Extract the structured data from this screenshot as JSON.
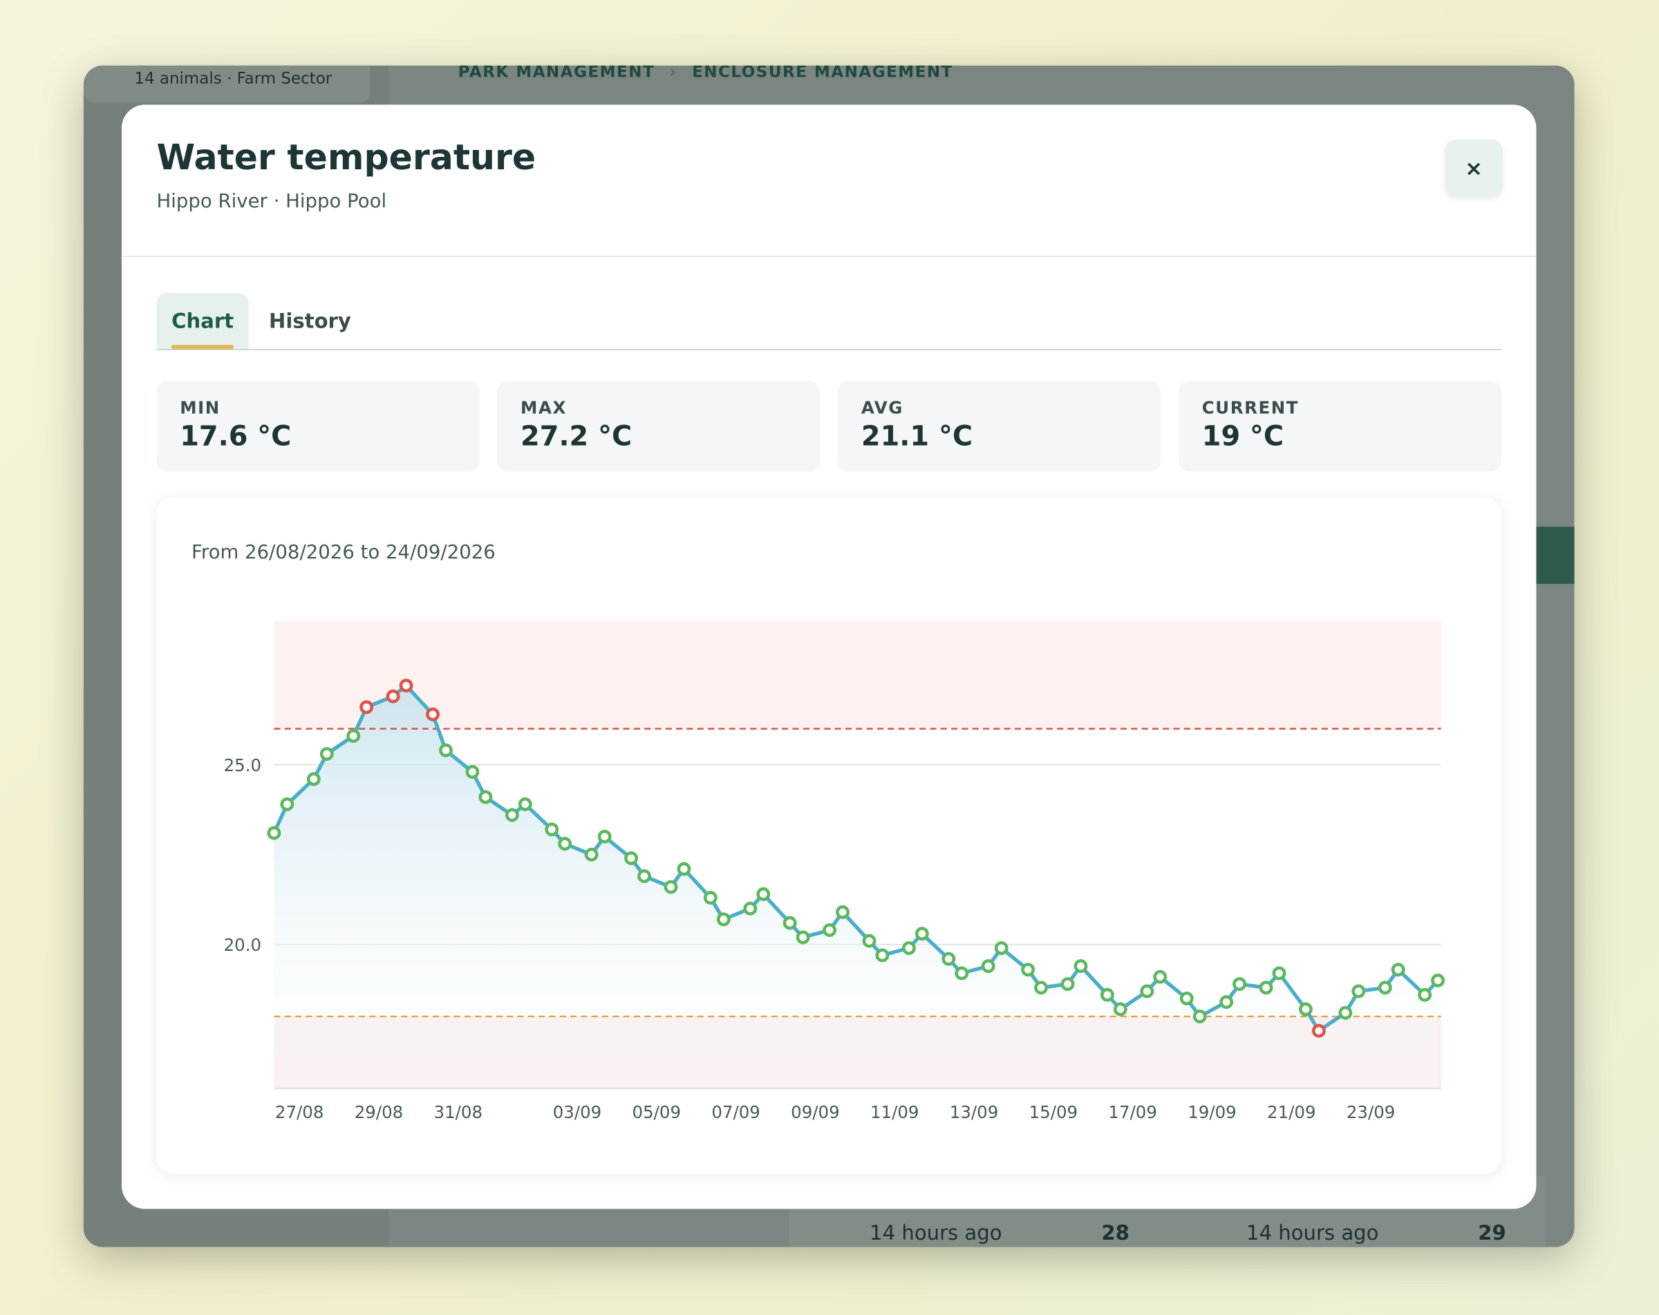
{
  "background": {
    "sector": "14 animals · Farm Sector",
    "breadcrumb": [
      "PARK MANAGEMENT",
      "ENCLOSURE MANAGEMENT"
    ],
    "cards": [
      {
        "time": "14 hours ago",
        "count": 28
      },
      {
        "time": "14 hours ago",
        "count": 29
      }
    ]
  },
  "modal": {
    "title": "Water temperature",
    "subtitle": "Hippo River · Hippo Pool",
    "close": "×",
    "tabs": [
      "Chart",
      "History"
    ],
    "active_tab": 0,
    "stats": [
      {
        "label": "MIN",
        "value": "17.6 °C"
      },
      {
        "label": "MAX",
        "value": "27.2 °C"
      },
      {
        "label": "AVG",
        "value": "21.1 °C"
      },
      {
        "label": "CURRENT",
        "value": "19 °C"
      }
    ]
  },
  "chart_data": {
    "type": "line",
    "subtitle": "From 26/08/2026 to 24/09/2026",
    "series": [
      {
        "color": "#4aaecb",
        "point_color": "#5cb85c",
        "alert_color": "#e0524a",
        "x": [
          0,
          0.33,
          1,
          1.33,
          2,
          2.33,
          3,
          3.33,
          4,
          4.33,
          5,
          5.33,
          6,
          6.33,
          7,
          7.33,
          8,
          8.33,
          9,
          9.33,
          10,
          10.33,
          11,
          11.33,
          12,
          12.33,
          13,
          13.33,
          14,
          14.33,
          15,
          15.33,
          16,
          16.33,
          17,
          17.33,
          18,
          18.33,
          19,
          19.33,
          20,
          20.33,
          21,
          21.33,
          22,
          22.33,
          23,
          23.33,
          24,
          24.33,
          25,
          25.33,
          26,
          26.33,
          27,
          27.33,
          28,
          28.33,
          29,
          29.33
        ],
        "values": [
          23.1,
          23.9,
          24.6,
          25.3,
          25.8,
          26.6,
          26.9,
          27.2,
          26.4,
          25.4,
          24.8,
          24.1,
          23.6,
          23.9,
          23.2,
          22.8,
          22.5,
          23.0,
          22.4,
          21.9,
          21.6,
          22.1,
          21.3,
          20.7,
          21.0,
          21.4,
          20.6,
          20.2,
          20.4,
          20.9,
          20.1,
          19.7,
          19.9,
          20.3,
          19.6,
          19.2,
          19.4,
          19.9,
          19.3,
          18.8,
          18.9,
          19.4,
          18.6,
          18.2,
          18.7,
          19.1,
          18.5,
          18.0,
          18.4,
          18.9,
          18.8,
          19.2,
          18.2,
          17.6,
          18.1,
          18.7,
          18.8,
          19.3,
          18.6,
          19.0
        ]
      }
    ],
    "thresholds": {
      "high": 26,
      "low": 18,
      "high_color": "#d9534f",
      "low_color": "#e8a33d"
    },
    "xlim": [
      0,
      29.41
    ],
    "xticks": [
      {
        "value": 0.64,
        "label": "27/08"
      },
      {
        "value": 2.64,
        "label": "29/08"
      },
      {
        "value": 4.64,
        "label": "31/08"
      },
      {
        "value": 7.64,
        "label": "03/09"
      },
      {
        "value": 9.64,
        "label": "05/09"
      },
      {
        "value": 11.64,
        "label": "07/09"
      },
      {
        "value": 13.64,
        "label": "09/09"
      },
      {
        "value": 15.64,
        "label": "11/09"
      },
      {
        "value": 17.64,
        "label": "13/09"
      },
      {
        "value": 19.64,
        "label": "15/09"
      },
      {
        "value": 21.64,
        "label": "17/09"
      },
      {
        "value": 23.64,
        "label": "19/09"
      },
      {
        "value": 25.64,
        "label": "21/09"
      },
      {
        "value": 27.64,
        "label": "23/09"
      }
    ],
    "ylim": [
      16,
      29
    ],
    "yticks": [
      {
        "value": 20,
        "label": "20.0"
      },
      {
        "value": 25,
        "label": "25.0"
      }
    ],
    "grid": true
  }
}
